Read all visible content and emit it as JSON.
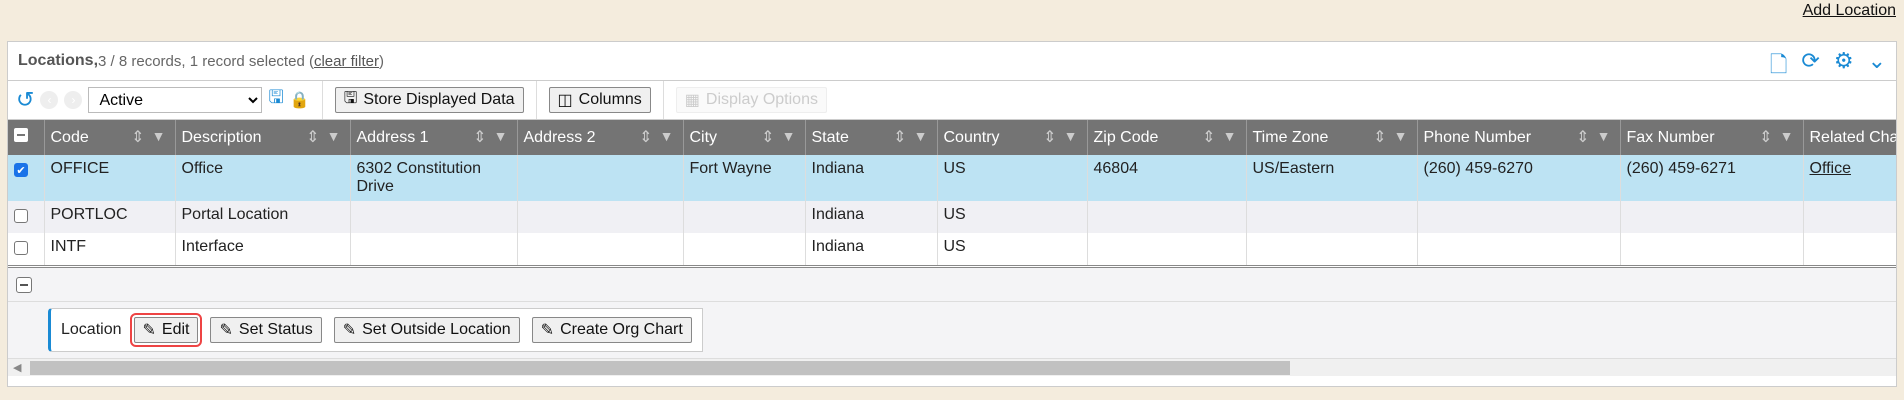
{
  "top": {
    "add_location": "Add Location"
  },
  "panel": {
    "title": "Locations,",
    "summary": " 3 / 8 records, 1 record selected (",
    "clear_filter": "clear filter",
    "close_paren": ")",
    "icons": [
      "new-document-icon",
      "refresh-icon",
      "gear-icon",
      "chevron-down-icon"
    ]
  },
  "toolbar": {
    "filter_value": "Active",
    "store_label": "Store Displayed Data",
    "columns_label": "Columns",
    "display_options_label": "Display Options"
  },
  "columns": [
    "Code",
    "Description",
    "Address 1",
    "Address 2",
    "City",
    "State",
    "Country",
    "Zip Code",
    "Time Zone",
    "Phone Number",
    "Fax Number",
    "Related Cha"
  ],
  "rows": [
    {
      "selected": true,
      "cells": [
        "OFFICE",
        "Office",
        "6302 Constitution Drive",
        "",
        "Fort Wayne",
        "Indiana",
        "US",
        "46804",
        "US/Eastern",
        "(260) 459-6270",
        "(260) 459-6271",
        "Office"
      ]
    },
    {
      "selected": false,
      "cells": [
        "PORTLOC",
        "Portal Location",
        "",
        "",
        "",
        "Indiana",
        "US",
        "",
        "",
        "",
        "",
        ""
      ]
    },
    {
      "selected": false,
      "cells": [
        "INTF",
        "Interface",
        "",
        "",
        "",
        "Indiana",
        "US",
        "",
        "",
        "",
        "",
        ""
      ]
    }
  ],
  "actions": {
    "label": "Location",
    "buttons": [
      "Edit",
      "Set Status",
      "Set Outside Location",
      "Create Org Chart"
    ]
  },
  "colors": {
    "accent": "#1a8ad4",
    "header": "#747474",
    "selected_row": "#bde3f3",
    "highlight": "#e44444"
  }
}
